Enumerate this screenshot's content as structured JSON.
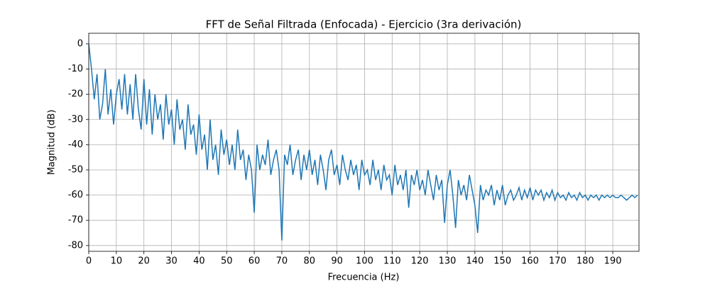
{
  "chart_data": {
    "type": "line",
    "title": "FFT de Señal Filtrada (Enfocada) - Ejercicio (3ra derivación)",
    "xlabel": "Frecuencia (Hz)",
    "ylabel": "Magnitud (dB)",
    "x": [
      0,
      1,
      2,
      3,
      4,
      5,
      6,
      7,
      8,
      9,
      10,
      11,
      12,
      13,
      14,
      15,
      16,
      17,
      18,
      19,
      20,
      21,
      22,
      23,
      24,
      25,
      26,
      27,
      28,
      29,
      30,
      31,
      32,
      33,
      34,
      35,
      36,
      37,
      38,
      39,
      40,
      41,
      42,
      43,
      44,
      45,
      46,
      47,
      48,
      49,
      50,
      51,
      52,
      53,
      54,
      55,
      56,
      57,
      58,
      59,
      60,
      61,
      62,
      63,
      64,
      65,
      66,
      67,
      68,
      69,
      70,
      71,
      72,
      73,
      74,
      75,
      76,
      77,
      78,
      79,
      80,
      81,
      82,
      83,
      84,
      85,
      86,
      87,
      88,
      89,
      90,
      91,
      92,
      93,
      94,
      95,
      96,
      97,
      98,
      99,
      100,
      101,
      102,
      103,
      104,
      105,
      106,
      107,
      108,
      109,
      110,
      111,
      112,
      113,
      114,
      115,
      116,
      117,
      118,
      119,
      120,
      121,
      122,
      123,
      124,
      125,
      126,
      127,
      128,
      129,
      130,
      131,
      132,
      133,
      134,
      135,
      136,
      137,
      138,
      139,
      140,
      141,
      142,
      143,
      144,
      145,
      146,
      147,
      148,
      149,
      150,
      151,
      152,
      153,
      154,
      155,
      156,
      157,
      158,
      159,
      160,
      161,
      162,
      163,
      164,
      165,
      166,
      167,
      168,
      169,
      170,
      171,
      172,
      173,
      174,
      175,
      176,
      177,
      178,
      179,
      180,
      181,
      182,
      183,
      184,
      185,
      186,
      187,
      188,
      189,
      190,
      191,
      192,
      193,
      194,
      195,
      196,
      197,
      198,
      199
    ],
    "series": [
      {
        "name": "FFT",
        "color": "#1f77b4",
        "values": [
          0,
          -10,
          -22,
          -12,
          -30,
          -24,
          -10,
          -28,
          -18,
          -32,
          -20,
          -14,
          -26,
          -12,
          -28,
          -16,
          -30,
          -12,
          -26,
          -34,
          -14,
          -32,
          -18,
          -36,
          -20,
          -30,
          -24,
          -38,
          -20,
          -32,
          -26,
          -40,
          -22,
          -34,
          -30,
          -42,
          -24,
          -36,
          -32,
          -44,
          -28,
          -42,
          -36,
          -50,
          -30,
          -46,
          -40,
          -52,
          -34,
          -44,
          -38,
          -48,
          -40,
          -50,
          -34,
          -46,
          -42,
          -54,
          -44,
          -50,
          -67,
          -40,
          -50,
          -44,
          -48,
          -38,
          -52,
          -46,
          -42,
          -50,
          -78,
          -44,
          -48,
          -40,
          -52,
          -46,
          -42,
          -54,
          -44,
          -50,
          -42,
          -52,
          -46,
          -56,
          -44,
          -50,
          -58,
          -46,
          -42,
          -52,
          -48,
          -56,
          -44,
          -50,
          -54,
          -46,
          -52,
          -48,
          -58,
          -46,
          -52,
          -50,
          -56,
          -46,
          -54,
          -50,
          -58,
          -48,
          -54,
          -52,
          -60,
          -48,
          -56,
          -52,
          -58,
          -50,
          -65,
          -52,
          -56,
          -50,
          -58,
          -54,
          -60,
          -50,
          -56,
          -62,
          -52,
          -58,
          -54,
          -71,
          -56,
          -50,
          -60,
          -73,
          -54,
          -60,
          -56,
          -62,
          -52,
          -58,
          -64,
          -75,
          -56,
          -62,
          -58,
          -60,
          -56,
          -64,
          -58,
          -62,
          -56,
          -64,
          -60,
          -58,
          -62,
          -60,
          -57,
          -62,
          -58,
          -61,
          -57,
          -62,
          -58,
          -60,
          -58,
          -62,
          -59,
          -61,
          -58,
          -62,
          -59,
          -61,
          -60,
          -62,
          -59,
          -61,
          -60,
          -62,
          -59,
          -61,
          -60,
          -62,
          -60,
          -61,
          -60,
          -62,
          -60,
          -61,
          -60,
          -61,
          -60,
          -61,
          -61,
          -60,
          -61,
          -62,
          -61,
          -60,
          -61,
          -60
        ]
      }
    ],
    "xlim": [
      0,
      199.5
    ],
    "ylim": [
      -82.3,
      4.2
    ],
    "xticks": [
      0,
      10,
      20,
      30,
      40,
      50,
      60,
      70,
      80,
      90,
      100,
      110,
      120,
      130,
      140,
      150,
      160,
      170,
      180,
      190
    ],
    "yticks": [
      0,
      -10,
      -20,
      -30,
      -40,
      -50,
      -60,
      -70,
      -80
    ],
    "grid": true
  }
}
